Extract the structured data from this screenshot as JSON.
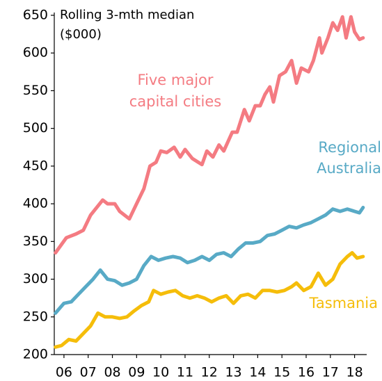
{
  "chart_data": {
    "type": "line",
    "annotations": [
      "Rolling 3-mth median",
      "($000)"
    ],
    "xlim": [
      5.6,
      18.5
    ],
    "xticks": [
      {
        "value": 6,
        "label": "06"
      },
      {
        "value": 7,
        "label": "07"
      },
      {
        "value": 8,
        "label": "08"
      },
      {
        "value": 9,
        "label": "09"
      },
      10,
      11,
      12,
      13,
      14,
      15,
      16,
      17,
      18
    ],
    "ylim": [
      200,
      650
    ],
    "yticks": [
      200,
      250,
      300,
      350,
      400,
      450,
      500,
      550,
      600,
      650
    ],
    "grid": false,
    "series": [
      {
        "name": [
          "Five major",
          "capital cities"
        ],
        "color": "#f47b82",
        "x": [
          5.65,
          6.1,
          6.5,
          6.8,
          7.1,
          7.6,
          7.8,
          8.1,
          8.3,
          8.7,
          9.0,
          9.3,
          9.55,
          9.8,
          10.0,
          10.25,
          10.55,
          10.8,
          11.0,
          11.3,
          11.55,
          11.7,
          11.9,
          12.15,
          12.4,
          12.6,
          12.95,
          13.15,
          13.45,
          13.65,
          13.9,
          14.1,
          14.3,
          14.5,
          14.65,
          14.9,
          15.15,
          15.4,
          15.6,
          15.8,
          16.1,
          16.3,
          16.55,
          16.65,
          16.9,
          17.1,
          17.3,
          17.5,
          17.65,
          17.85,
          18.0,
          18.2,
          18.35
        ],
        "values": [
          335,
          355,
          360,
          365,
          385,
          405,
          400,
          400,
          390,
          380,
          400,
          420,
          450,
          455,
          470,
          468,
          475,
          462,
          472,
          460,
          455,
          452,
          470,
          462,
          478,
          470,
          495,
          495,
          525,
          510,
          530,
          530,
          545,
          555,
          535,
          570,
          575,
          590,
          560,
          580,
          575,
          590,
          620,
          600,
          620,
          640,
          630,
          648,
          620,
          648,
          628,
          618,
          620
        ]
      },
      {
        "name": [
          "Regional",
          "Australia"
        ],
        "color": "#58aac6",
        "x": [
          5.65,
          6.0,
          6.3,
          6.6,
          6.9,
          7.2,
          7.5,
          7.8,
          8.1,
          8.4,
          8.7,
          9.0,
          9.3,
          9.6,
          9.9,
          10.2,
          10.5,
          10.8,
          11.1,
          11.4,
          11.7,
          12.0,
          12.3,
          12.6,
          12.9,
          13.2,
          13.5,
          13.8,
          14.1,
          14.4,
          14.7,
          15.0,
          15.3,
          15.6,
          15.9,
          16.2,
          16.5,
          16.8,
          17.1,
          17.4,
          17.7,
          18.0,
          18.2,
          18.35
        ],
        "values": [
          255,
          268,
          270,
          280,
          290,
          300,
          312,
          300,
          298,
          292,
          295,
          300,
          318,
          330,
          325,
          328,
          330,
          328,
          322,
          325,
          330,
          325,
          333,
          335,
          330,
          340,
          348,
          348,
          350,
          358,
          360,
          365,
          370,
          368,
          372,
          375,
          380,
          385,
          393,
          390,
          393,
          390,
          388,
          395
        ]
      },
      {
        "name": [
          "Tasmania"
        ],
        "color": "#f5bd0a",
        "x": [
          5.65,
          5.9,
          6.2,
          6.5,
          6.8,
          7.1,
          7.4,
          7.7,
          8.0,
          8.3,
          8.6,
          8.9,
          9.2,
          9.5,
          9.7,
          10.0,
          10.3,
          10.6,
          10.9,
          11.2,
          11.5,
          11.8,
          12.1,
          12.4,
          12.7,
          13.0,
          13.3,
          13.6,
          13.9,
          14.2,
          14.5,
          14.8,
          15.1,
          15.4,
          15.6,
          15.9,
          16.2,
          16.5,
          16.8,
          17.1,
          17.4,
          17.7,
          17.9,
          18.1,
          18.35
        ],
        "values": [
          210,
          212,
          220,
          218,
          228,
          238,
          255,
          250,
          250,
          248,
          250,
          258,
          265,
          270,
          285,
          280,
          283,
          285,
          278,
          275,
          278,
          275,
          270,
          275,
          278,
          268,
          278,
          280,
          275,
          285,
          285,
          283,
          285,
          290,
          295,
          285,
          290,
          308,
          292,
          300,
          320,
          330,
          335,
          328,
          330
        ]
      }
    ]
  }
}
